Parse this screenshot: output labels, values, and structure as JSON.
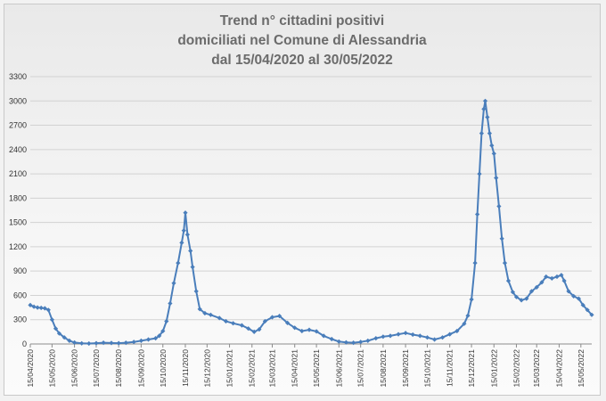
{
  "chart_data": {
    "type": "line",
    "title": [
      "Trend n° cittadini positivi",
      "domiciliati nel Comune di Alessandria",
      "dal 15/04/2020 al 30/05/2022"
    ],
    "xlabel": "",
    "ylabel": "",
    "ylim": [
      0,
      3300
    ],
    "yticks": [
      0,
      300,
      600,
      900,
      1200,
      1500,
      1800,
      2100,
      2400,
      2700,
      3000,
      3300
    ],
    "xlim": [
      "15/04/2020",
      "30/05/2022"
    ],
    "xticks": [
      "15/04/2020",
      "15/05/2020",
      "15/06/2020",
      "15/07/2020",
      "15/08/2020",
      "15/09/2020",
      "15/10/2020",
      "15/11/2020",
      "15/12/2020",
      "15/01/2021",
      "15/02/2021",
      "15/03/2021",
      "15/04/2021",
      "15/05/2021",
      "15/06/2021",
      "15/07/2021",
      "15/08/2021",
      "15/09/2021",
      "15/10/2021",
      "15/11/2021",
      "15/12/2021",
      "15/01/2022",
      "15/02/2022",
      "15/03/2022",
      "15/04/2022",
      "15/05/2022"
    ],
    "grid": true,
    "legend": "none",
    "color": "#4a7ebb",
    "series": [
      {
        "points": [
          [
            "15/04/2020",
            480
          ],
          [
            "20/04/2020",
            460
          ],
          [
            "25/04/2020",
            450
          ],
          [
            "30/04/2020",
            445
          ],
          [
            "05/05/2020",
            440
          ],
          [
            "10/05/2020",
            420
          ],
          [
            "15/05/2020",
            300
          ],
          [
            "20/05/2020",
            190
          ],
          [
            "25/05/2020",
            130
          ],
          [
            "01/06/2020",
            80
          ],
          [
            "08/06/2020",
            40
          ],
          [
            "15/06/2020",
            18
          ],
          [
            "25/06/2020",
            8
          ],
          [
            "05/07/2020",
            6
          ],
          [
            "15/07/2020",
            10
          ],
          [
            "25/07/2020",
            15
          ],
          [
            "05/08/2020",
            12
          ],
          [
            "15/08/2020",
            10
          ],
          [
            "25/08/2020",
            15
          ],
          [
            "05/09/2020",
            25
          ],
          [
            "15/09/2020",
            40
          ],
          [
            "25/09/2020",
            55
          ],
          [
            "05/10/2020",
            70
          ],
          [
            "10/10/2020",
            100
          ],
          [
            "15/10/2020",
            160
          ],
          [
            "20/10/2020",
            280
          ],
          [
            "25/10/2020",
            500
          ],
          [
            "30/10/2020",
            750
          ],
          [
            "05/11/2020",
            1000
          ],
          [
            "10/11/2020",
            1250
          ],
          [
            "13/11/2020",
            1400
          ],
          [
            "15/11/2020",
            1620
          ],
          [
            "18/11/2020",
            1350
          ],
          [
            "22/11/2020",
            1150
          ],
          [
            "25/11/2020",
            950
          ],
          [
            "30/11/2020",
            650
          ],
          [
            "05/12/2020",
            430
          ],
          [
            "12/12/2020",
            380
          ],
          [
            "20/12/2020",
            360
          ],
          [
            "01/01/2021",
            320
          ],
          [
            "10/01/2021",
            280
          ],
          [
            "20/01/2021",
            255
          ],
          [
            "01/02/2021",
            230
          ],
          [
            "10/02/2021",
            190
          ],
          [
            "18/02/2021",
            150
          ],
          [
            "25/02/2021",
            180
          ],
          [
            "05/03/2021",
            280
          ],
          [
            "15/03/2021",
            330
          ],
          [
            "25/03/2021",
            345
          ],
          [
            "05/04/2021",
            260
          ],
          [
            "15/04/2021",
            200
          ],
          [
            "25/04/2021",
            160
          ],
          [
            "05/05/2021",
            175
          ],
          [
            "15/05/2021",
            155
          ],
          [
            "25/05/2021",
            100
          ],
          [
            "05/06/2021",
            60
          ],
          [
            "15/06/2021",
            30
          ],
          [
            "25/06/2021",
            20
          ],
          [
            "05/07/2021",
            15
          ],
          [
            "15/07/2021",
            25
          ],
          [
            "25/07/2021",
            40
          ],
          [
            "05/08/2021",
            70
          ],
          [
            "15/08/2021",
            90
          ],
          [
            "25/08/2021",
            100
          ],
          [
            "05/09/2021",
            120
          ],
          [
            "15/09/2021",
            135
          ],
          [
            "25/09/2021",
            115
          ],
          [
            "05/10/2021",
            100
          ],
          [
            "15/10/2021",
            80
          ],
          [
            "25/10/2021",
            55
          ],
          [
            "05/11/2021",
            80
          ],
          [
            "15/11/2021",
            120
          ],
          [
            "25/11/2021",
            160
          ],
          [
            "05/12/2021",
            250
          ],
          [
            "10/12/2021",
            350
          ],
          [
            "15/12/2021",
            550
          ],
          [
            "20/12/2021",
            1000
          ],
          [
            "23/12/2021",
            1600
          ],
          [
            "26/12/2021",
            2100
          ],
          [
            "29/12/2021",
            2600
          ],
          [
            "01/01/2022",
            2900
          ],
          [
            "03/01/2022",
            3000
          ],
          [
            "06/01/2022",
            2800
          ],
          [
            "09/01/2022",
            2600
          ],
          [
            "12/01/2022",
            2450
          ],
          [
            "15/01/2022",
            2350
          ],
          [
            "18/01/2022",
            2050
          ],
          [
            "22/01/2022",
            1700
          ],
          [
            "26/01/2022",
            1300
          ],
          [
            "30/01/2022",
            1000
          ],
          [
            "04/02/2022",
            780
          ],
          [
            "10/02/2022",
            640
          ],
          [
            "15/02/2022",
            580
          ],
          [
            "22/02/2022",
            540
          ],
          [
            "01/03/2022",
            560
          ],
          [
            "08/03/2022",
            650
          ],
          [
            "15/03/2022",
            700
          ],
          [
            "22/03/2022",
            760
          ],
          [
            "28/03/2022",
            830
          ],
          [
            "05/04/2022",
            810
          ],
          [
            "12/04/2022",
            830
          ],
          [
            "18/04/2022",
            850
          ],
          [
            "22/04/2022",
            780
          ],
          [
            "28/04/2022",
            650
          ],
          [
            "05/05/2022",
            590
          ],
          [
            "12/05/2022",
            560
          ],
          [
            "18/05/2022",
            480
          ],
          [
            "24/05/2022",
            420
          ],
          [
            "30/05/2022",
            360
          ]
        ]
      }
    ]
  }
}
